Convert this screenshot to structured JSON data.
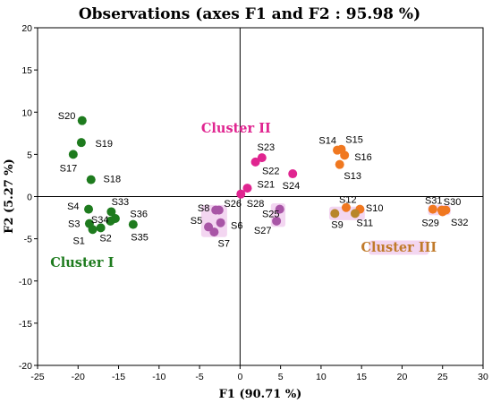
{
  "chart_data": {
    "type": "scatter",
    "title": "Observations (axes F1 and F2 : 95.98 %)",
    "xlabel": "F1 (90.71 %)",
    "ylabel": "F2 (5.27 %)",
    "xlim": [
      -25,
      30
    ],
    "ylim": [
      -20,
      20
    ],
    "xticks": [
      -25,
      -20,
      -15,
      -10,
      -5,
      0,
      5,
      10,
      15,
      20,
      25,
      30
    ],
    "yticks": [
      -20,
      -15,
      -10,
      -5,
      0,
      5,
      10,
      15,
      20
    ],
    "grid": false,
    "legend": "none",
    "colors": {
      "cluster_1": "#1e7b1e",
      "cluster_2": "#e02590",
      "cluster_2b": "#a855a6",
      "cluster_3": "#f07820",
      "cluster_3b": "#b8862a",
      "highlight": "#f3d6f1"
    },
    "cluster_labels": [
      {
        "text": "Cluster I",
        "color": "#1e7b1e",
        "x": -19.5,
        "y": -7.8
      },
      {
        "text": "Cluster II",
        "color": "#e02590",
        "x": -0.5,
        "y": 8.1
      },
      {
        "text": "Cluster III",
        "color": "#c07a2a",
        "x": 19.6,
        "y": -6.0
      }
    ],
    "points": [
      {
        "label": "S1",
        "x": -18.2,
        "y": -3.9,
        "color": "#1e7b1e",
        "lx": -19.9,
        "ly": -5.2
      },
      {
        "label": "S2",
        "x": -17.2,
        "y": -3.7,
        "color": "#1e7b1e",
        "lx": -16.6,
        "ly": -4.9
      },
      {
        "label": "S3",
        "x": -18.6,
        "y": -3.2,
        "color": "#1e7b1e",
        "lx": -20.5,
        "ly": -3.2
      },
      {
        "label": "S4",
        "x": -18.7,
        "y": -1.5,
        "color": "#1e7b1e",
        "lx": -20.6,
        "ly": -1.1
      },
      {
        "label": "S5",
        "x": -3.9,
        "y": -3.6,
        "color": "#a855a6",
        "lx": -5.4,
        "ly": -2.8
      },
      {
        "label": "S6",
        "x": -2.4,
        "y": -3.1,
        "color": "#a855a6",
        "lx": -0.4,
        "ly": -3.4
      },
      {
        "label": "S7",
        "x": -3.2,
        "y": -4.2,
        "color": "#a855a6",
        "lx": -2.0,
        "ly": -5.5
      },
      {
        "label": "S8",
        "x": -3.0,
        "y": -1.6,
        "color": "#a855a6",
        "lx": -4.5,
        "ly": -1.3
      },
      {
        "label": "S9",
        "x": 11.7,
        "y": -2.0,
        "color": "#b8862a",
        "lx": 12.0,
        "ly": -3.3
      },
      {
        "label": "S10",
        "x": 14.8,
        "y": -1.5,
        "color": "#f07820",
        "lx": 16.6,
        "ly": -1.3
      },
      {
        "label": "S11",
        "x": 14.2,
        "y": -2.0,
        "color": "#b8862a",
        "lx": 15.4,
        "ly": -3.1
      },
      {
        "label": "S12",
        "x": 13.1,
        "y": -1.3,
        "color": "#f07820",
        "lx": 13.3,
        "ly": -0.3
      },
      {
        "label": "S13",
        "x": 12.3,
        "y": 3.8,
        "color": "#f07820",
        "lx": 13.9,
        "ly": 2.5
      },
      {
        "label": "S14",
        "x": 12.0,
        "y": 5.5,
        "color": "#f07820",
        "lx": 10.8,
        "ly": 6.7
      },
      {
        "label": "S15",
        "x": 12.5,
        "y": 5.6,
        "color": "#f07820",
        "lx": 14.1,
        "ly": 6.8
      },
      {
        "label": "S16",
        "x": 12.9,
        "y": 4.9,
        "color": "#f07820",
        "lx": 15.2,
        "ly": 4.7
      },
      {
        "label": "S17",
        "x": -20.6,
        "y": 5.0,
        "color": "#1e7b1e",
        "lx": -21.2,
        "ly": 3.4
      },
      {
        "label": "S18",
        "x": -18.4,
        "y": 2.0,
        "color": "#1e7b1e",
        "lx": -15.8,
        "ly": 2.1
      },
      {
        "label": "S19",
        "x": -19.6,
        "y": 6.4,
        "color": "#1e7b1e",
        "lx": -16.8,
        "ly": 6.3
      },
      {
        "label": "S20",
        "x": -19.5,
        "y": 9.0,
        "color": "#1e7b1e",
        "lx": -21.4,
        "ly": 9.6
      },
      {
        "label": "S21",
        "x": 0.9,
        "y": 1.0,
        "color": "#e02590",
        "lx": 3.2,
        "ly": 1.5
      },
      {
        "label": "S22",
        "x": 1.9,
        "y": 4.1,
        "color": "#e02590",
        "lx": 3.8,
        "ly": 3.1
      },
      {
        "label": "S23",
        "x": 2.7,
        "y": 4.6,
        "color": "#e02590",
        "lx": 3.2,
        "ly": 5.9
      },
      {
        "label": "S24",
        "x": 6.5,
        "y": 2.7,
        "color": "#e02590",
        "lx": 6.3,
        "ly": 1.3
      },
      {
        "label": "S25",
        "x": 4.9,
        "y": -1.5,
        "color": "#a855a6",
        "lx": 3.8,
        "ly": -2.0
      },
      {
        "label": "S26",
        "x": -2.6,
        "y": -1.6,
        "color": "#a855a6",
        "lx": -0.9,
        "ly": -0.8
      },
      {
        "label": "S27",
        "x": 4.5,
        "y": -2.9,
        "color": "#a855a6",
        "lx": 2.8,
        "ly": -4.0
      },
      {
        "label": "S28",
        "x": 0.1,
        "y": 0.3,
        "color": "#e02590",
        "lx": 1.9,
        "ly": -0.8
      },
      {
        "label": "S29",
        "x": 23.8,
        "y": -1.5,
        "color": "#f07820",
        "lx": 23.5,
        "ly": -3.1
      },
      {
        "label": "S30",
        "x": 25.4,
        "y": -1.6,
        "color": "#f07820",
        "lx": 26.2,
        "ly": -0.6
      },
      {
        "label": "S31",
        "x": 24.9,
        "y": -1.6,
        "color": "#f07820",
        "lx": 23.9,
        "ly": -0.4
      },
      {
        "label": "S32",
        "x": 25.0,
        "y": -1.8,
        "color": "#f07820",
        "lx": 27.1,
        "ly": -3.0
      },
      {
        "label": "S33",
        "x": -15.9,
        "y": -1.8,
        "color": "#1e7b1e",
        "lx": -14.8,
        "ly": -0.6
      },
      {
        "label": "S34",
        "x": -16.0,
        "y": -2.9,
        "color": "#1e7b1e",
        "lx": -17.3,
        "ly": -2.7
      },
      {
        "label": "S35",
        "x": -13.2,
        "y": -3.3,
        "color": "#1e7b1e",
        "lx": -12.4,
        "ly": -4.8
      },
      {
        "label": "S36",
        "x": -15.4,
        "y": -2.6,
        "color": "#1e7b1e",
        "lx": -12.5,
        "ly": -2.0
      }
    ]
  }
}
